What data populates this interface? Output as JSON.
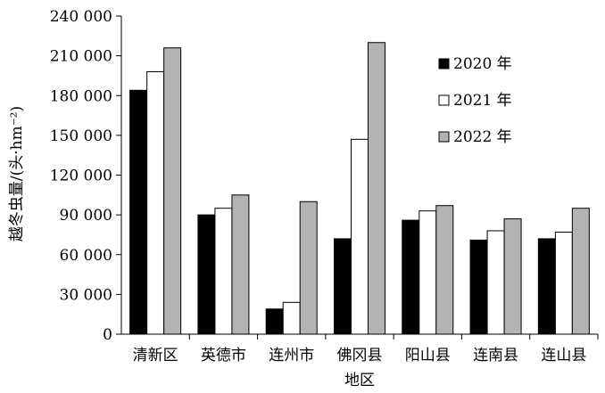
{
  "chart_data": {
    "type": "bar",
    "categories": [
      "清新区",
      "英德市",
      "连州市",
      "佛冈县",
      "阳山县",
      "连南县",
      "连山县"
    ],
    "series": [
      {
        "name": "2020 年",
        "color": "#000000",
        "values": [
          184000,
          90000,
          19000,
          72000,
          86000,
          71000,
          72000
        ]
      },
      {
        "name": "2021 年",
        "color": "#ffffff",
        "values": [
          198000,
          95000,
          24000,
          147000,
          93000,
          78000,
          77000
        ]
      },
      {
        "name": "2022 年",
        "color": "#b3b3b3",
        "values": [
          216000,
          105000,
          100000,
          220000,
          97000,
          87000,
          95000
        ]
      }
    ],
    "ylim": [
      0,
      240000
    ],
    "yticks": [
      0,
      30000,
      60000,
      90000,
      120000,
      150000,
      180000,
      210000,
      240000
    ],
    "ytick_labels": [
      "0",
      "30 000",
      "60 000",
      "90 000",
      "120 000",
      "150 000",
      "180 000",
      "210 000",
      "240 000"
    ],
    "xlabel": "地区",
    "ylabel": "越冬虫量/(头·hm⁻²)",
    "legend_position": "top-right",
    "grid": false
  }
}
